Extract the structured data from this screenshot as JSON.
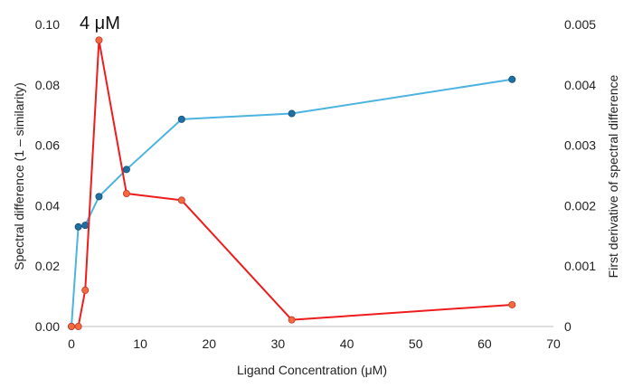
{
  "chart_data": {
    "type": "line",
    "xlabel": "Ligand Concentration (μM)",
    "ylabel_left": "Spectral difference (1 – similarity)",
    "ylabel_right": "First derivative of spectral difference",
    "xlim": [
      0,
      70
    ],
    "ylim_left": [
      0,
      0.1
    ],
    "ylim_right": [
      0,
      0.005
    ],
    "x_ticks": [
      "0",
      "10",
      "20",
      "30",
      "40",
      "50",
      "60",
      "70"
    ],
    "y_left_ticks": [
      "0.00",
      "0.02",
      "0.04",
      "0.06",
      "0.08",
      "0.10"
    ],
    "y_right_ticks": [
      "0",
      "0.001",
      "0.002",
      "0.003",
      "0.004",
      "0.005"
    ],
    "grid": false,
    "series": [
      {
        "axis": "left",
        "color": "#4db3e0",
        "marker_color": "#1f6fa3",
        "x": [
          0,
          1,
          2,
          4,
          8,
          16,
          32,
          64
        ],
        "y": [
          0.0,
          0.033,
          0.0335,
          0.043,
          0.052,
          0.0686,
          0.0705,
          0.0818
        ]
      },
      {
        "axis": "right",
        "color": "#ee1c1c",
        "marker_color": "#f26a3e",
        "x": [
          0,
          1,
          2,
          4,
          8,
          16,
          32,
          64
        ],
        "y": [
          0.0,
          0.0,
          0.0006,
          0.00474,
          0.0022,
          0.00209,
          0.00011,
          0.00036
        ]
      }
    ],
    "annotations": [
      {
        "text": "4 μM",
        "x": 4,
        "y": 0.005,
        "axis": "right"
      }
    ]
  }
}
